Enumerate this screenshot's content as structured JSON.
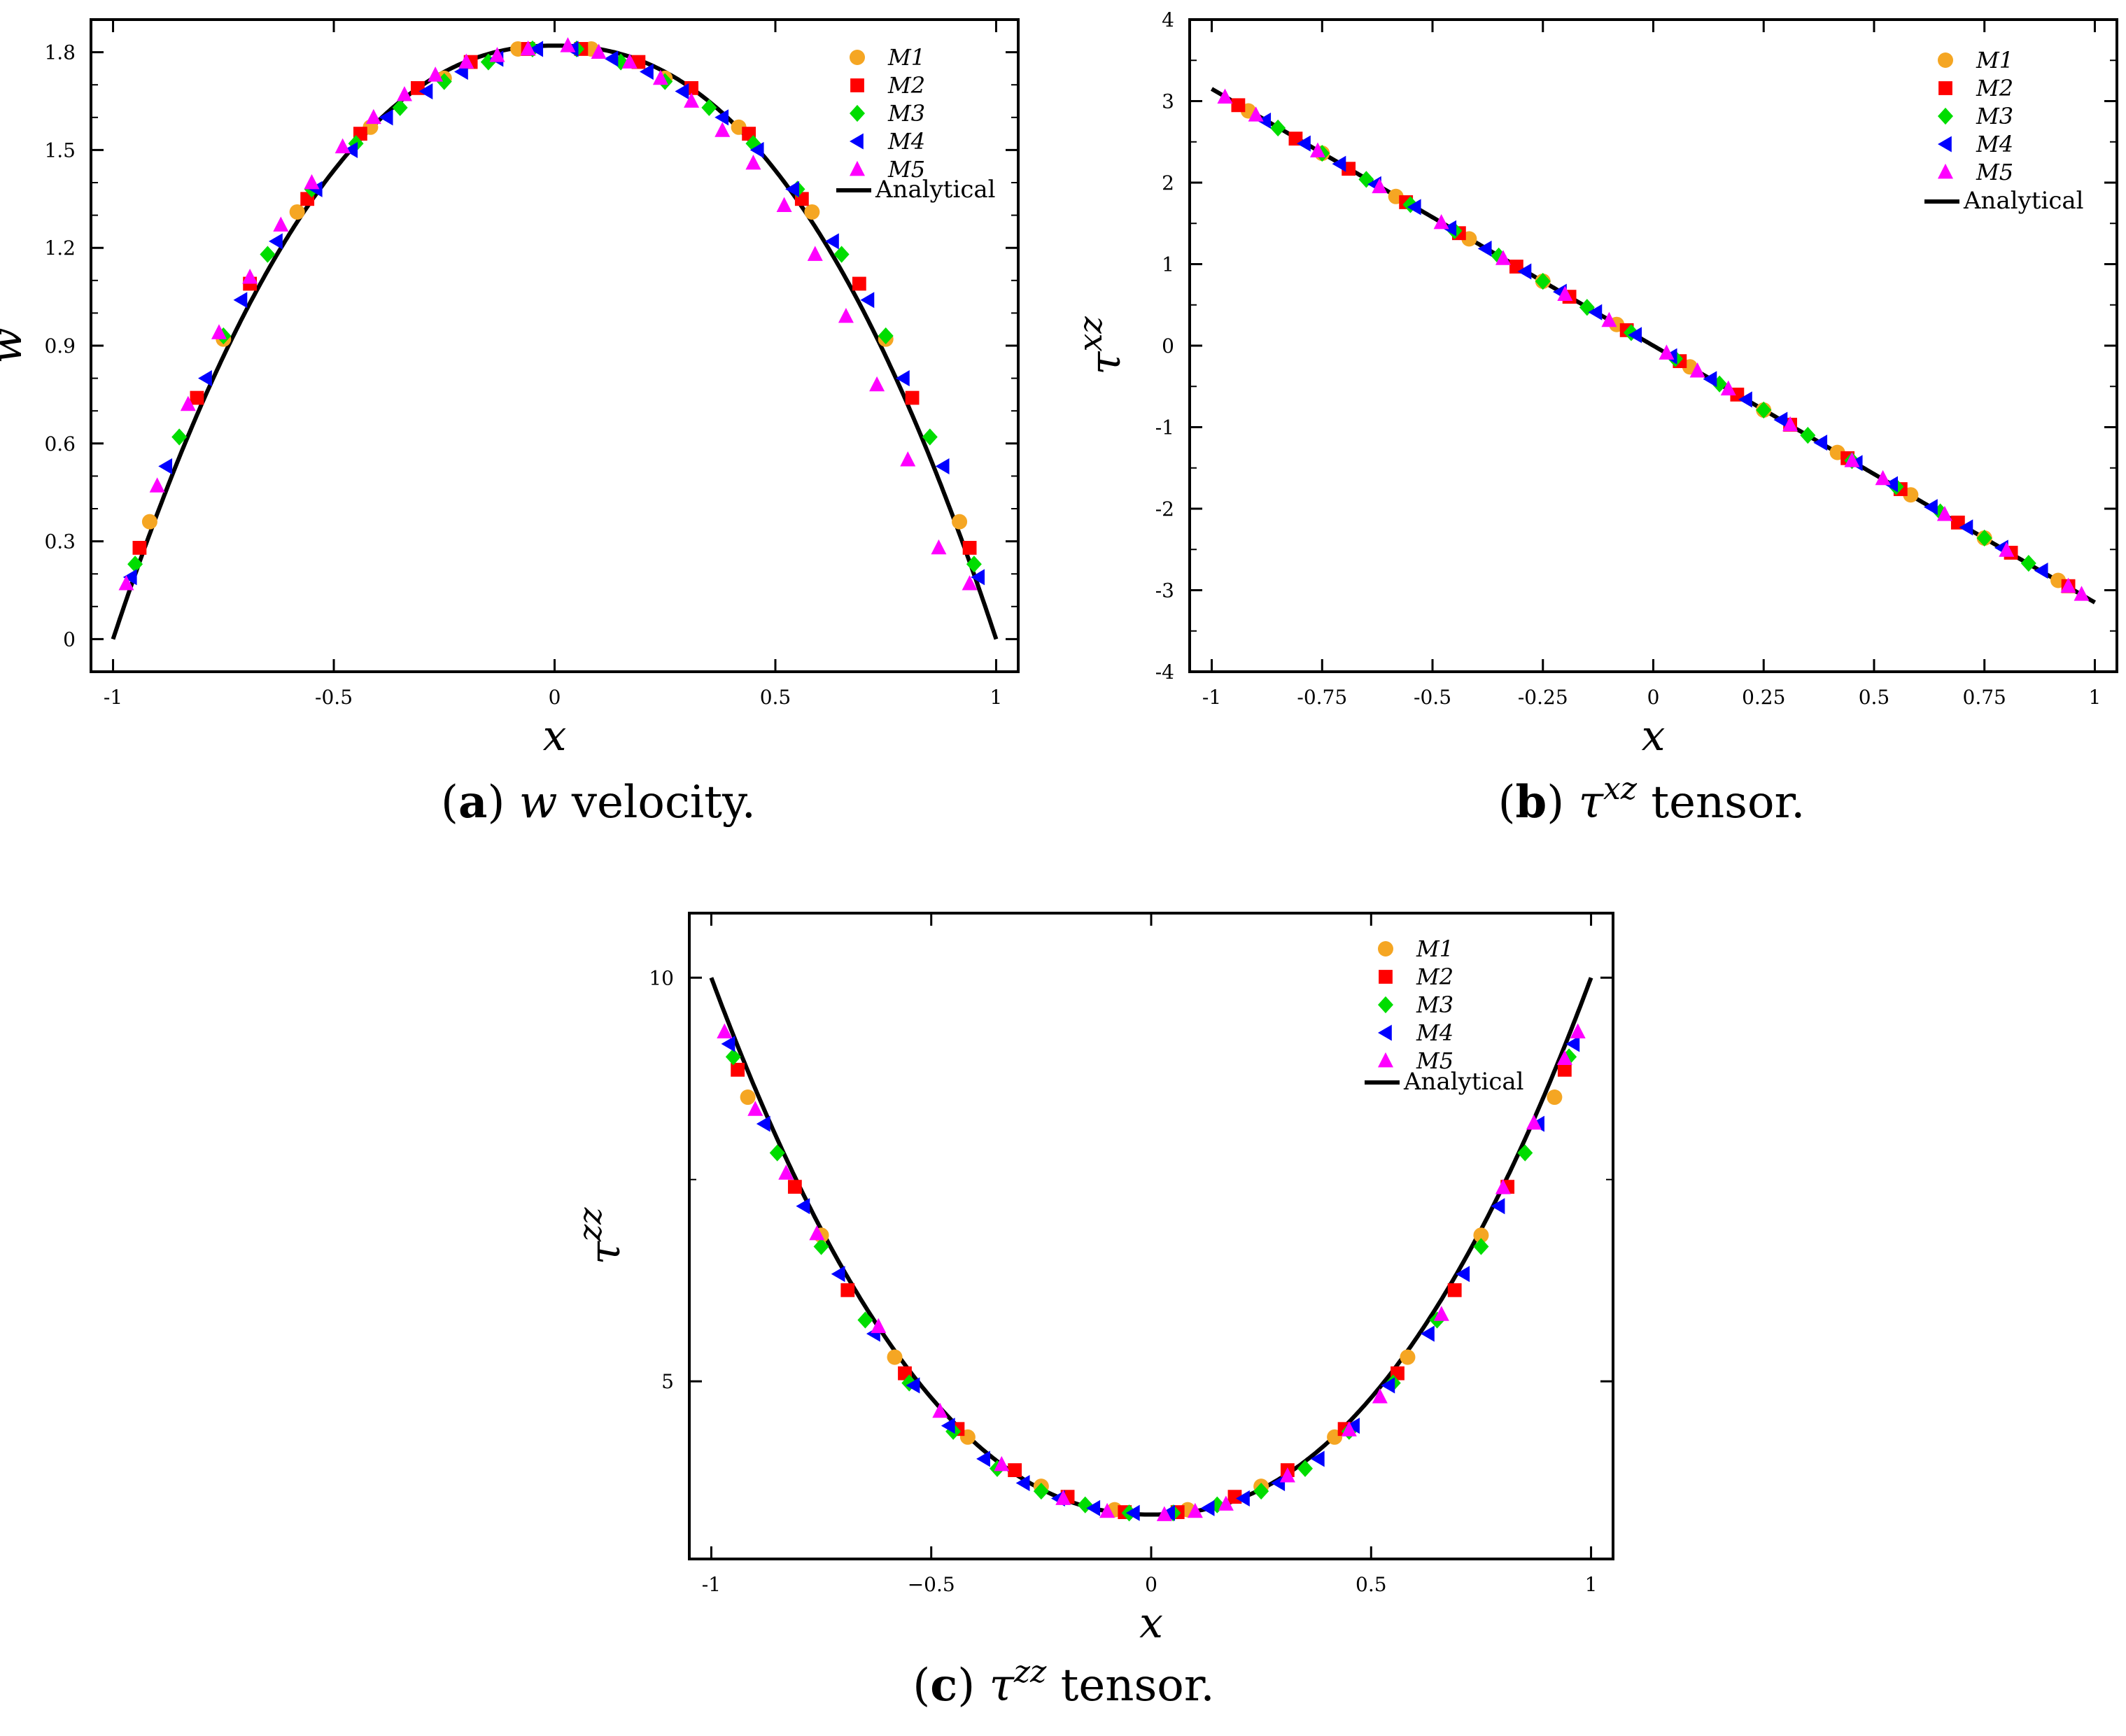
{
  "chart_data": [
    {
      "id": "a",
      "type": "scatter",
      "caption": {
        "label": "a",
        "symbol": "w",
        "sup": "",
        "rest": " velocity."
      },
      "xlabel": "x",
      "ylabel": "w",
      "ylabel_sup": "",
      "xlim": [
        -1.05,
        1.05
      ],
      "ylim": [
        -0.1,
        1.9
      ],
      "xticks": [
        -1,
        -0.5,
        0,
        0.5,
        1
      ],
      "xtick_labels": [
        "-1",
        "-0.5",
        "0",
        "0.5",
        "1"
      ],
      "yticks": [
        0,
        0.3,
        0.6,
        0.9,
        1.2,
        1.5,
        1.8
      ],
      "ytick_labels": [
        "0",
        "0.3",
        "0.6",
        "0.9",
        "1.2",
        "1.5",
        "1.8"
      ],
      "yminor": 3,
      "function": "velocity",
      "legend": [
        {
          "name": "M1",
          "marker": "circle",
          "color": "#f5a623"
        },
        {
          "name": "M2",
          "marker": "square",
          "color": "#ff0000"
        },
        {
          "name": "M3",
          "marker": "diamond",
          "color": "#00dd00"
        },
        {
          "name": "M4",
          "marker": "triangle-left",
          "color": "#0000ff"
        },
        {
          "name": "M5",
          "marker": "triangle-up",
          "color": "#ff00ff"
        },
        {
          "name": "Analytical",
          "marker": "line",
          "color": "#000000"
        }
      ],
      "series": [
        {
          "name": "M1",
          "x": [
            -0.917,
            -0.75,
            -0.583,
            -0.417,
            -0.25,
            -0.083,
            0.083,
            0.25,
            0.417,
            0.583,
            0.75,
            0.917
          ],
          "y": [
            0.36,
            0.92,
            1.31,
            1.57,
            1.72,
            1.81,
            1.81,
            1.72,
            1.57,
            1.31,
            0.92,
            0.36
          ]
        },
        {
          "name": "M2",
          "x": [
            -0.94,
            -0.81,
            -0.69,
            -0.56,
            -0.44,
            -0.31,
            -0.19,
            -0.06,
            0.06,
            0.19,
            0.31,
            0.44,
            0.56,
            0.69,
            0.81,
            0.94
          ],
          "y": [
            0.28,
            0.74,
            1.09,
            1.35,
            1.55,
            1.69,
            1.77,
            1.81,
            1.81,
            1.77,
            1.69,
            1.55,
            1.35,
            1.09,
            0.74,
            0.28
          ]
        },
        {
          "name": "M3",
          "x": [
            -0.95,
            -0.85,
            -0.75,
            -0.65,
            -0.55,
            -0.45,
            -0.35,
            -0.25,
            -0.15,
            -0.05,
            0.05,
            0.15,
            0.25,
            0.35,
            0.45,
            0.55,
            0.65,
            0.75,
            0.85,
            0.95
          ],
          "y": [
            0.23,
            0.62,
            0.93,
            1.18,
            1.38,
            1.52,
            1.63,
            1.71,
            1.77,
            1.81,
            1.81,
            1.77,
            1.71,
            1.63,
            1.52,
            1.38,
            1.18,
            0.93,
            0.62,
            0.23
          ]
        },
        {
          "name": "M4",
          "x": [
            -0.96,
            -0.88,
            -0.79,
            -0.71,
            -0.63,
            -0.54,
            -0.46,
            -0.38,
            -0.29,
            -0.21,
            -0.13,
            -0.04,
            0.04,
            0.13,
            0.21,
            0.29,
            0.38,
            0.46,
            0.54,
            0.63,
            0.71,
            0.79,
            0.88,
            0.96
          ],
          "y": [
            0.19,
            0.53,
            0.8,
            1.04,
            1.22,
            1.38,
            1.5,
            1.6,
            1.68,
            1.74,
            1.78,
            1.81,
            1.81,
            1.78,
            1.74,
            1.68,
            1.6,
            1.5,
            1.38,
            1.22,
            1.04,
            0.8,
            0.53,
            0.19
          ]
        },
        {
          "name": "M5",
          "x": [
            -0.97,
            -0.9,
            -0.83,
            -0.76,
            -0.69,
            -0.62,
            -0.55,
            -0.48,
            -0.41,
            -0.34,
            -0.27,
            -0.2,
            -0.13,
            -0.06,
            0.03,
            0.1,
            0.17,
            0.24,
            0.31,
            0.38,
            0.45,
            0.52,
            0.59,
            0.66,
            0.73,
            0.8,
            0.87,
            0.94
          ],
          "y": [
            0.17,
            0.47,
            0.72,
            0.94,
            1.11,
            1.27,
            1.4,
            1.51,
            1.6,
            1.67,
            1.73,
            1.77,
            1.79,
            1.81,
            1.82,
            1.8,
            1.77,
            1.72,
            1.65,
            1.56,
            1.46,
            1.33,
            1.18,
            0.99,
            0.78,
            0.55,
            0.28,
            0.17
          ]
        }
      ]
    },
    {
      "id": "b",
      "type": "scatter",
      "caption": {
        "label": "b",
        "symbol": "τ",
        "sup": "xz",
        "rest": " tensor."
      },
      "xlabel": "x",
      "ylabel": "τ",
      "ylabel_sup": "xz",
      "xlim": [
        -1.05,
        1.05
      ],
      "ylim": [
        -4,
        4
      ],
      "xticks": [
        -1,
        -0.75,
        -0.5,
        -0.25,
        0,
        0.25,
        0.5,
        0.75,
        1
      ],
      "xtick_labels": [
        "-1",
        "-0.75",
        "-0.5",
        "-0.25",
        "0",
        "0.25",
        "0.5",
        "0.75",
        "1"
      ],
      "yticks": [
        -4,
        -3,
        -2,
        -1,
        0,
        1,
        2,
        3,
        4
      ],
      "ytick_labels": [
        "-4",
        "-3",
        "-2",
        "-1",
        "0",
        "1",
        "2",
        "3",
        "4"
      ],
      "yminor": 2,
      "function": "shear",
      "legend": [
        {
          "name": "M1",
          "marker": "circle",
          "color": "#f5a623"
        },
        {
          "name": "M2",
          "marker": "square",
          "color": "#ff0000"
        },
        {
          "name": "M3",
          "marker": "diamond",
          "color": "#00dd00"
        },
        {
          "name": "M4",
          "marker": "triangle-left",
          "color": "#0000ff"
        },
        {
          "name": "M5",
          "marker": "triangle-up",
          "color": "#ff00ff"
        },
        {
          "name": "Analytical",
          "marker": "line",
          "color": "#000000"
        }
      ],
      "series": [
        {
          "name": "M1",
          "x": [
            -0.917,
            -0.75,
            -0.583,
            -0.417,
            -0.25,
            -0.083,
            0.083,
            0.25,
            0.417,
            0.583,
            0.75,
            0.917
          ],
          "y": [
            2.88,
            2.36,
            1.83,
            1.31,
            0.79,
            0.26,
            -0.26,
            -0.79,
            -1.31,
            -1.83,
            -2.36,
            -2.88
          ]
        },
        {
          "name": "M2",
          "x": [
            -0.94,
            -0.81,
            -0.69,
            -0.56,
            -0.44,
            -0.31,
            -0.19,
            -0.06,
            0.06,
            0.19,
            0.31,
            0.44,
            0.56,
            0.69,
            0.81,
            0.94
          ],
          "y": [
            2.95,
            2.54,
            2.17,
            1.76,
            1.38,
            0.97,
            0.6,
            0.19,
            -0.19,
            -0.6,
            -0.97,
            -1.38,
            -1.76,
            -2.17,
            -2.54,
            -2.95
          ]
        },
        {
          "name": "M3",
          "x": [
            -0.85,
            -0.75,
            -0.65,
            -0.55,
            -0.45,
            -0.35,
            -0.25,
            -0.15,
            -0.05,
            0.05,
            0.15,
            0.25,
            0.35,
            0.45,
            0.55,
            0.65,
            0.75,
            0.85
          ],
          "y": [
            2.67,
            2.36,
            2.04,
            1.73,
            1.41,
            1.1,
            0.79,
            0.47,
            0.16,
            -0.16,
            -0.47,
            -0.79,
            -1.1,
            -1.41,
            -1.73,
            -2.04,
            -2.36,
            -2.67
          ]
        },
        {
          "name": "M4",
          "x": [
            -0.88,
            -0.79,
            -0.71,
            -0.63,
            -0.54,
            -0.46,
            -0.38,
            -0.29,
            -0.21,
            -0.13,
            -0.04,
            0.04,
            0.13,
            0.21,
            0.29,
            0.38,
            0.46,
            0.54,
            0.63,
            0.71,
            0.79,
            0.88
          ],
          "y": [
            2.76,
            2.48,
            2.23,
            1.98,
            1.7,
            1.44,
            1.19,
            0.91,
            0.66,
            0.41,
            0.13,
            -0.13,
            -0.41,
            -0.66,
            -0.91,
            -1.19,
            -1.44,
            -1.7,
            -1.98,
            -2.23,
            -2.48,
            -2.76
          ]
        },
        {
          "name": "M5",
          "x": [
            -0.97,
            -0.9,
            -0.76,
            -0.62,
            -0.48,
            -0.34,
            -0.2,
            -0.1,
            0.03,
            0.1,
            0.17,
            0.31,
            0.45,
            0.52,
            0.66,
            0.8,
            0.94,
            0.97
          ],
          "y": [
            3.05,
            2.83,
            2.39,
            1.95,
            1.51,
            1.07,
            0.63,
            0.31,
            -0.09,
            -0.31,
            -0.53,
            -0.97,
            -1.41,
            -1.63,
            -2.07,
            -2.51,
            -2.95,
            -3.05
          ]
        }
      ]
    },
    {
      "id": "c",
      "type": "scatter",
      "caption": {
        "label": "c",
        "symbol": "τ",
        "sup": "zz",
        "rest": " tensor."
      },
      "xlabel": "x",
      "ylabel": "τ",
      "ylabel_sup": "zz",
      "xlim": [
        -1.05,
        1.05
      ],
      "ylim": [
        2.8,
        10.8
      ],
      "xticks": [
        -1,
        -0.5,
        0,
        0.5,
        1
      ],
      "xtick_labels": [
        "-1",
        "−0.5",
        "0",
        "0.5",
        "1"
      ],
      "yticks": [
        5,
        10
      ],
      "ytick_labels": [
        "5",
        "10"
      ],
      "yminor": 2,
      "function": "normal",
      "legend": [
        {
          "name": "M1",
          "marker": "circle",
          "color": "#f5a623"
        },
        {
          "name": "M2",
          "marker": "square",
          "color": "#ff0000"
        },
        {
          "name": "M3",
          "marker": "diamond",
          "color": "#00dd00"
        },
        {
          "name": "M4",
          "marker": "triangle-left",
          "color": "#0000ff"
        },
        {
          "name": "M5",
          "marker": "triangle-up",
          "color": "#ff00ff"
        },
        {
          "name": "Analytical",
          "marker": "line",
          "color": "#000000"
        }
      ],
      "series": [
        {
          "name": "M1",
          "x": [
            -0.917,
            -0.75,
            -0.583,
            -0.417,
            -0.25,
            -0.083,
            0.083,
            0.25,
            0.417,
            0.583,
            0.75,
            0.917
          ],
          "y": [
            8.52,
            6.81,
            5.3,
            4.31,
            3.7,
            3.41,
            3.41,
            3.7,
            4.31,
            5.3,
            6.81,
            8.52
          ]
        },
        {
          "name": "M2",
          "x": [
            -0.94,
            -0.81,
            -0.69,
            -0.56,
            -0.44,
            -0.31,
            -0.19,
            -0.06,
            0.06,
            0.19,
            0.31,
            0.44,
            0.56,
            0.69,
            0.81,
            0.94
          ],
          "y": [
            8.86,
            7.41,
            6.13,
            5.1,
            4.41,
            3.9,
            3.57,
            3.38,
            3.38,
            3.57,
            3.9,
            4.41,
            5.1,
            6.13,
            7.41,
            8.86
          ]
        },
        {
          "name": "M3",
          "x": [
            -0.95,
            -0.85,
            -0.75,
            -0.65,
            -0.55,
            -0.45,
            -0.35,
            -0.25,
            -0.15,
            -0.05,
            0.05,
            0.15,
            0.25,
            0.35,
            0.45,
            0.55,
            0.65,
            0.75,
            0.85,
            0.95
          ],
          "y": [
            9.02,
            7.83,
            6.67,
            5.76,
            4.98,
            4.38,
            3.92,
            3.64,
            3.47,
            3.37,
            3.37,
            3.47,
            3.64,
            3.92,
            4.38,
            4.98,
            5.76,
            6.67,
            7.83,
            9.02
          ]
        },
        {
          "name": "M4",
          "x": [
            -0.96,
            -0.88,
            -0.79,
            -0.71,
            -0.63,
            -0.54,
            -0.46,
            -0.38,
            -0.29,
            -0.21,
            -0.13,
            -0.04,
            0.04,
            0.13,
            0.21,
            0.29,
            0.38,
            0.46,
            0.54,
            0.63,
            0.71,
            0.79,
            0.88,
            0.96
          ],
          "y": [
            9.18,
            8.19,
            7.17,
            6.33,
            5.59,
            4.95,
            4.45,
            4.04,
            3.74,
            3.55,
            3.43,
            3.37,
            3.37,
            3.43,
            3.55,
            3.74,
            4.04,
            4.45,
            4.95,
            5.59,
            6.33,
            7.17,
            8.19,
            9.18
          ]
        },
        {
          "name": "M5",
          "x": [
            -0.97,
            -0.9,
            -0.83,
            -0.76,
            -0.62,
            -0.48,
            -0.34,
            -0.2,
            -0.1,
            0.03,
            0.1,
            0.17,
            0.31,
            0.45,
            0.52,
            0.66,
            0.8,
            0.87,
            0.94,
            0.97
          ],
          "y": [
            9.33,
            8.37,
            7.58,
            6.83,
            5.68,
            4.63,
            3.97,
            3.55,
            3.39,
            3.35,
            3.39,
            3.48,
            3.83,
            4.4,
            4.81,
            5.83,
            7.4,
            8.2,
            9.0,
            9.33
          ]
        }
      ]
    }
  ]
}
